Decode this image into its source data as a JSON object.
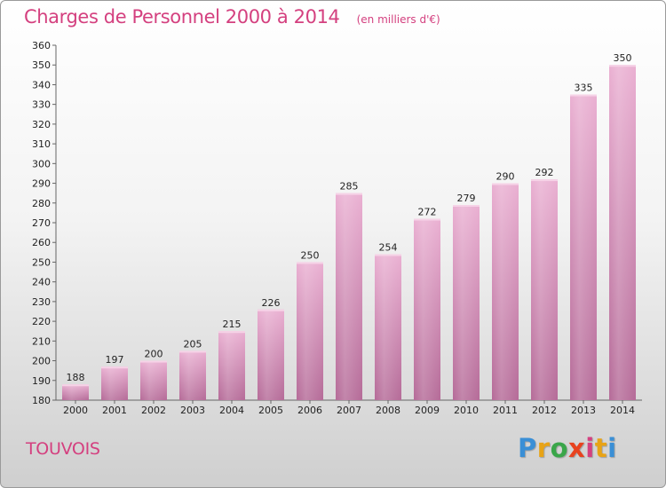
{
  "subtitle": "(en milliers d'€)",
  "commune": "TOUVOIS",
  "logo": {
    "text": "Proxiti",
    "letter_colors": [
      "#3a8fd6",
      "#e8a316",
      "#3aa64a",
      "#e8421e",
      "#d4407f",
      "#e8a316",
      "#3a8fd6"
    ]
  },
  "colors": {
    "title": "#d4407f",
    "bar_top": "#eab0d2",
    "bar_bottom": "#b56b98"
  },
  "chart_data": {
    "type": "bar",
    "title": "Charges de Personnel 2000 à 2014",
    "categories": [
      "2000",
      "2001",
      "2002",
      "2003",
      "2004",
      "2005",
      "2006",
      "2007",
      "2008",
      "2009",
      "2010",
      "2011",
      "2012",
      "2013",
      "2014"
    ],
    "values": [
      188,
      197,
      200,
      205,
      215,
      226,
      250,
      285,
      254,
      272,
      279,
      290,
      292,
      335,
      350
    ],
    "ylim": [
      180,
      360
    ],
    "ytick_step": 10,
    "xlabel": "",
    "ylabel": "",
    "grid": false,
    "data_labels": true
  }
}
